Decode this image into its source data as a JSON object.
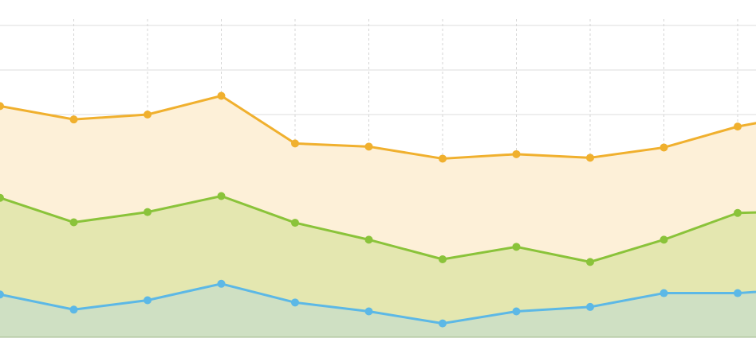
{
  "chart_data": {
    "type": "area",
    "title": "",
    "xlabel": "",
    "ylabel": "",
    "x": [
      0,
      1,
      2,
      3,
      4,
      5,
      6,
      7,
      8,
      9,
      10,
      11
    ],
    "ylim": [
      0,
      7
    ],
    "grid": true,
    "stacked": true,
    "series": [
      {
        "color": "#5cb8e6",
        "fill": "#cfe0c3",
        "values": [
          0.96,
          0.62,
          0.83,
          1.2,
          0.78,
          0.58,
          0.31,
          0.58,
          0.68,
          0.99,
          0.99,
          1.1
        ]
      },
      {
        "color": "#8ac33a",
        "fill": "#e4e7b0",
        "values": [
          2.17,
          1.96,
          1.98,
          1.97,
          1.79,
          1.61,
          1.44,
          1.45,
          1.01,
          1.2,
          1.8,
          1.74
        ]
      },
      {
        "color": "#f0b02e",
        "fill": "#fdf0d8",
        "values": [
          2.06,
          2.31,
          2.19,
          2.25,
          1.78,
          2.09,
          2.26,
          2.08,
          2.34,
          2.07,
          1.94,
          2.2
        ]
      }
    ]
  }
}
